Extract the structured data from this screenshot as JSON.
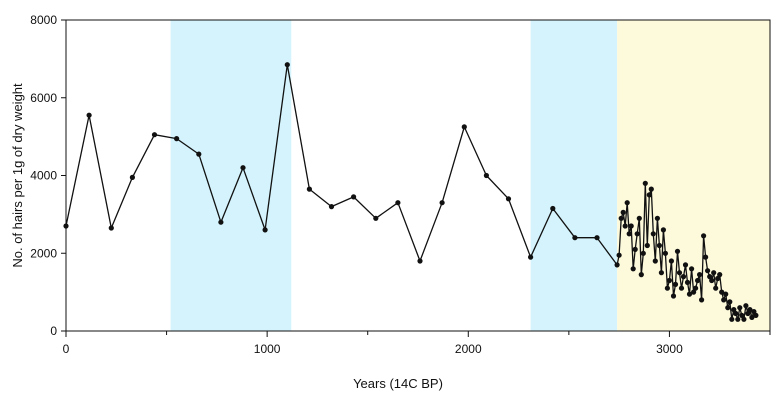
{
  "chart_data": {
    "type": "line",
    "title": "",
    "xlabel": "Years (14C BP)",
    "ylabel": "No. of hairs per 1g of dry weight",
    "xlim": [
      0,
      3500
    ],
    "ylim": [
      0,
      8000
    ],
    "xticks": [
      0,
      1000,
      2000,
      3000
    ],
    "yticks": [
      0,
      2000,
      4000,
      6000,
      8000
    ],
    "grid": false,
    "legend": "none",
    "shaded_bands": [
      {
        "x0": 520,
        "x1": 1120,
        "color": "#d4f3fc"
      },
      {
        "x0": 2310,
        "x1": 2740,
        "color": "#d4f3fc"
      },
      {
        "x0": 2740,
        "x1": 3500,
        "color": "#fdfadc"
      }
    ],
    "series": [
      {
        "color": "#111111",
        "points": [
          [
            0,
            2700
          ],
          [
            115,
            5550
          ],
          [
            225,
            2650
          ],
          [
            330,
            3950
          ],
          [
            440,
            5050
          ],
          [
            550,
            4950
          ],
          [
            660,
            4550
          ],
          [
            770,
            2800
          ],
          [
            880,
            4200
          ],
          [
            990,
            2600
          ],
          [
            1100,
            6850
          ],
          [
            1210,
            3650
          ],
          [
            1320,
            3200
          ],
          [
            1430,
            3450
          ],
          [
            1540,
            2900
          ],
          [
            1650,
            3300
          ],
          [
            1760,
            1800
          ],
          [
            1870,
            3300
          ],
          [
            1980,
            5250
          ],
          [
            2090,
            4000
          ],
          [
            2200,
            3400
          ],
          [
            2310,
            1900
          ],
          [
            2420,
            3150
          ],
          [
            2530,
            2400
          ],
          [
            2640,
            2400
          ],
          [
            2740,
            1700
          ],
          [
            2750,
            1950
          ],
          [
            2760,
            2900
          ],
          [
            2770,
            3050
          ],
          [
            2780,
            2700
          ],
          [
            2790,
            3300
          ],
          [
            2800,
            2500
          ],
          [
            2810,
            2700
          ],
          [
            2820,
            1600
          ],
          [
            2830,
            2100
          ],
          [
            2840,
            2500
          ],
          [
            2850,
            2900
          ],
          [
            2860,
            1450
          ],
          [
            2870,
            2000
          ],
          [
            2880,
            3800
          ],
          [
            2890,
            2200
          ],
          [
            2900,
            3500
          ],
          [
            2910,
            3650
          ],
          [
            2920,
            2500
          ],
          [
            2930,
            1800
          ],
          [
            2940,
            2900
          ],
          [
            2950,
            2200
          ],
          [
            2960,
            1500
          ],
          [
            2970,
            2600
          ],
          [
            2980,
            2000
          ],
          [
            2990,
            1100
          ],
          [
            3000,
            1300
          ],
          [
            3010,
            1800
          ],
          [
            3020,
            900
          ],
          [
            3030,
            1200
          ],
          [
            3040,
            2050
          ],
          [
            3050,
            1500
          ],
          [
            3060,
            1100
          ],
          [
            3070,
            1400
          ],
          [
            3080,
            1700
          ],
          [
            3090,
            1250
          ],
          [
            3100,
            950
          ],
          [
            3110,
            1600
          ],
          [
            3120,
            1000
          ],
          [
            3130,
            1100
          ],
          [
            3140,
            1300
          ],
          [
            3150,
            1450
          ],
          [
            3160,
            800
          ],
          [
            3170,
            2450
          ],
          [
            3180,
            1900
          ],
          [
            3190,
            1550
          ],
          [
            3200,
            1400
          ],
          [
            3210,
            1300
          ],
          [
            3220,
            1500
          ],
          [
            3230,
            1100
          ],
          [
            3240,
            1350
          ],
          [
            3250,
            1450
          ],
          [
            3260,
            1000
          ],
          [
            3270,
            800
          ],
          [
            3280,
            950
          ],
          [
            3290,
            600
          ],
          [
            3300,
            750
          ],
          [
            3310,
            300
          ],
          [
            3320,
            550
          ],
          [
            3330,
            450
          ],
          [
            3340,
            300
          ],
          [
            3350,
            600
          ],
          [
            3360,
            400
          ],
          [
            3370,
            300
          ],
          [
            3380,
            650
          ],
          [
            3390,
            450
          ],
          [
            3400,
            550
          ],
          [
            3410,
            350
          ],
          [
            3420,
            500
          ],
          [
            3430,
            400
          ]
        ]
      }
    ]
  }
}
